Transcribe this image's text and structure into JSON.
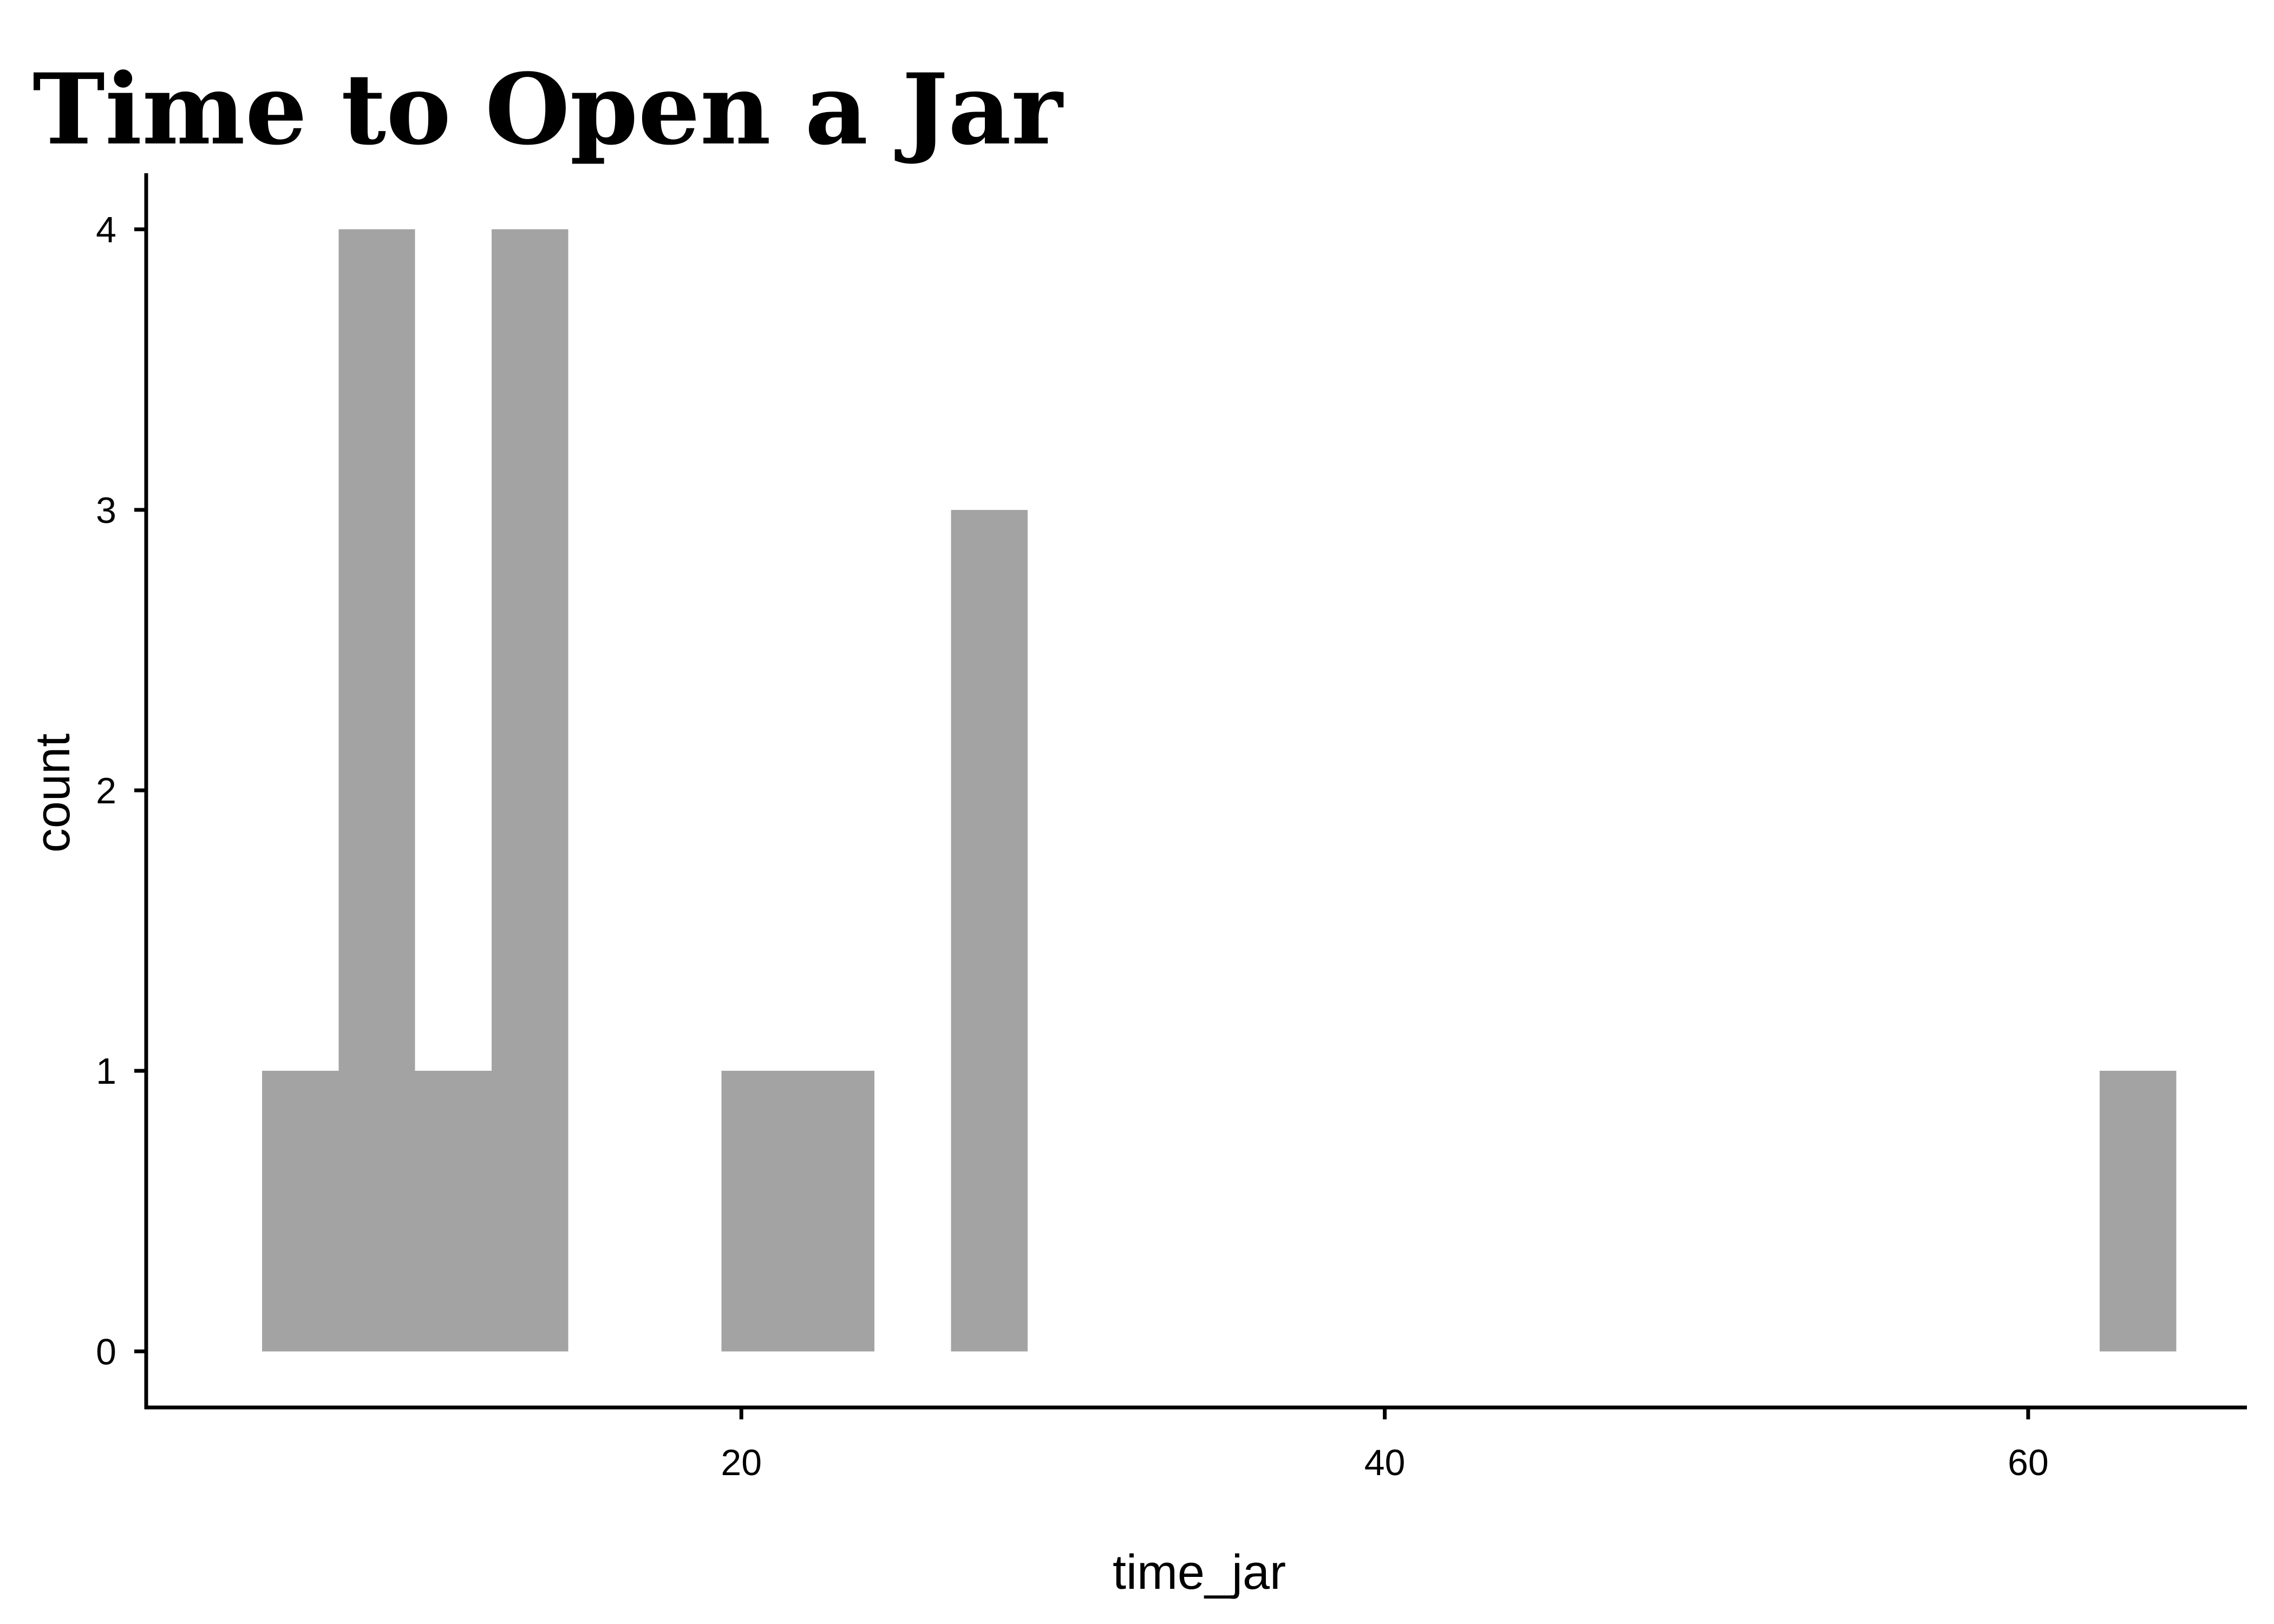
{
  "chart_data": {
    "type": "bar",
    "title": "Time to Open a Jar",
    "xlabel": "time_jar",
    "ylabel": "count",
    "bin_width": 2.38,
    "bins": [
      {
        "x0": 5.1,
        "x1": 7.48,
        "count": 1
      },
      {
        "x0": 7.48,
        "x1": 9.86,
        "count": 4
      },
      {
        "x0": 9.86,
        "x1": 12.24,
        "count": 1
      },
      {
        "x0": 12.24,
        "x1": 14.62,
        "count": 4
      },
      {
        "x0": 19.38,
        "x1": 21.76,
        "count": 1
      },
      {
        "x0": 21.76,
        "x1": 24.14,
        "count": 1
      },
      {
        "x0": 26.52,
        "x1": 28.9,
        "count": 3
      },
      {
        "x0": 62.22,
        "x1": 64.6,
        "count": 1
      }
    ],
    "xlim": [
      1.5,
      66.8
    ],
    "ylim": [
      -0.2,
      4.2
    ],
    "x_ticks": [
      20,
      40,
      60
    ],
    "x_tick_labels": [
      "20",
      "40",
      "60"
    ],
    "y_ticks": [
      0,
      1,
      2,
      3,
      4
    ],
    "y_tick_labels": [
      "0",
      "1",
      "2",
      "3",
      "4"
    ],
    "bar_color": "#a3a3a3",
    "axis_color": "#000000",
    "grid": false,
    "legend": "none"
  }
}
